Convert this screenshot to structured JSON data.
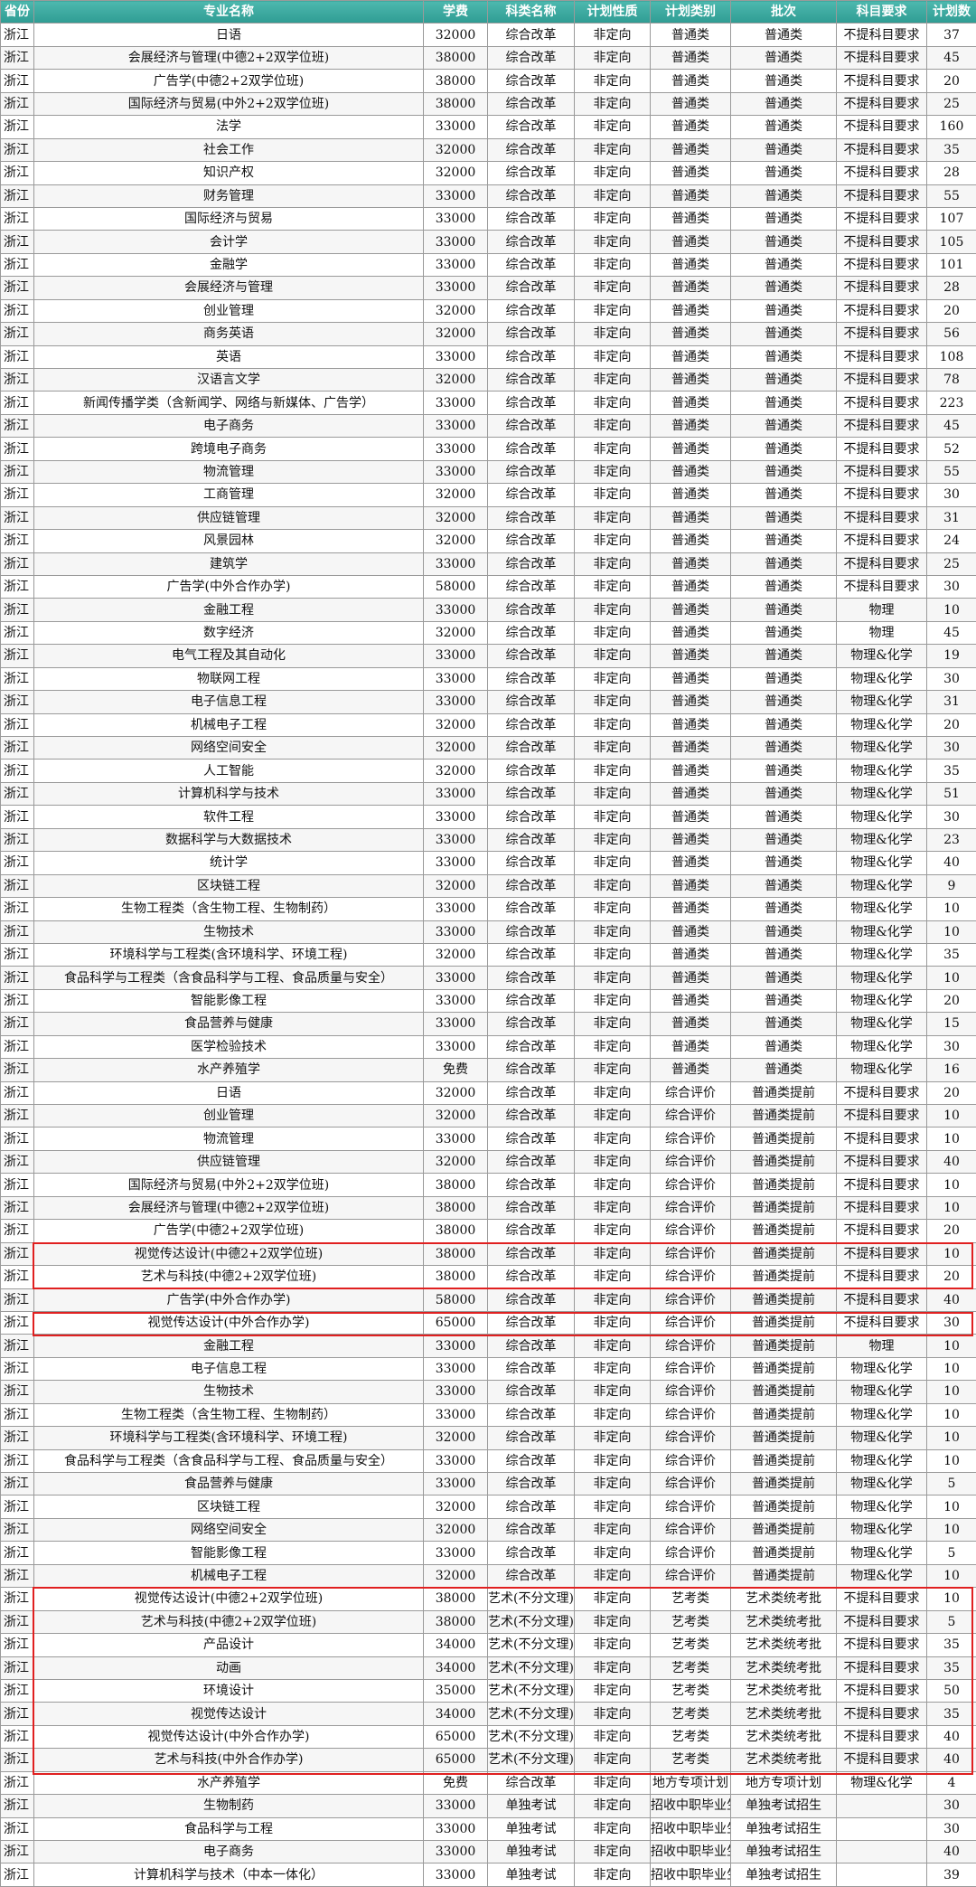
{
  "table": {
    "header": [
      "省份",
      "专业名称",
      "学费",
      "科类名称",
      "计划性质",
      "计划类别",
      "批次",
      "科目要求",
      "计划数"
    ],
    "rows": [
      [
        "浙江",
        "日语",
        32000,
        "综合改革",
        "非定向",
        "普通类",
        "普通类",
        "不提科目要求",
        37
      ],
      [
        "浙江",
        "会展经济与管理(中德2+2双学位班)",
        38000,
        "综合改革",
        "非定向",
        "普通类",
        "普通类",
        "不提科目要求",
        45
      ],
      [
        "浙江",
        "广告学(中德2+2双学位班)",
        38000,
        "综合改革",
        "非定向",
        "普通类",
        "普通类",
        "不提科目要求",
        20
      ],
      [
        "浙江",
        "国际经济与贸易(中外2+2双学位班)",
        38000,
        "综合改革",
        "非定向",
        "普通类",
        "普通类",
        "不提科目要求",
        25
      ],
      [
        "浙江",
        "法学",
        33000,
        "综合改革",
        "非定向",
        "普通类",
        "普通类",
        "不提科目要求",
        160
      ],
      [
        "浙江",
        "社会工作",
        32000,
        "综合改革",
        "非定向",
        "普通类",
        "普通类",
        "不提科目要求",
        35
      ],
      [
        "浙江",
        "知识产权",
        32000,
        "综合改革",
        "非定向",
        "普通类",
        "普通类",
        "不提科目要求",
        28
      ],
      [
        "浙江",
        "财务管理",
        33000,
        "综合改革",
        "非定向",
        "普通类",
        "普通类",
        "不提科目要求",
        55
      ],
      [
        "浙江",
        "国际经济与贸易",
        33000,
        "综合改革",
        "非定向",
        "普通类",
        "普通类",
        "不提科目要求",
        107
      ],
      [
        "浙江",
        "会计学",
        33000,
        "综合改革",
        "非定向",
        "普通类",
        "普通类",
        "不提科目要求",
        105
      ],
      [
        "浙江",
        "金融学",
        33000,
        "综合改革",
        "非定向",
        "普通类",
        "普通类",
        "不提科目要求",
        101
      ],
      [
        "浙江",
        "会展经济与管理",
        33000,
        "综合改革",
        "非定向",
        "普通类",
        "普通类",
        "不提科目要求",
        28
      ],
      [
        "浙江",
        "创业管理",
        32000,
        "综合改革",
        "非定向",
        "普通类",
        "普通类",
        "不提科目要求",
        20
      ],
      [
        "浙江",
        "商务英语",
        32000,
        "综合改革",
        "非定向",
        "普通类",
        "普通类",
        "不提科目要求",
        56
      ],
      [
        "浙江",
        "英语",
        33000,
        "综合改革",
        "非定向",
        "普通类",
        "普通类",
        "不提科目要求",
        108
      ],
      [
        "浙江",
        "汉语言文学",
        32000,
        "综合改革",
        "非定向",
        "普通类",
        "普通类",
        "不提科目要求",
        78
      ],
      [
        "浙江",
        "新闻传播学类（含新闻学、网络与新媒体、广告学）",
        33000,
        "综合改革",
        "非定向",
        "普通类",
        "普通类",
        "不提科目要求",
        223
      ],
      [
        "浙江",
        "电子商务",
        33000,
        "综合改革",
        "非定向",
        "普通类",
        "普通类",
        "不提科目要求",
        45
      ],
      [
        "浙江",
        "跨境电子商务",
        33000,
        "综合改革",
        "非定向",
        "普通类",
        "普通类",
        "不提科目要求",
        52
      ],
      [
        "浙江",
        "物流管理",
        33000,
        "综合改革",
        "非定向",
        "普通类",
        "普通类",
        "不提科目要求",
        55
      ],
      [
        "浙江",
        "工商管理",
        32000,
        "综合改革",
        "非定向",
        "普通类",
        "普通类",
        "不提科目要求",
        30
      ],
      [
        "浙江",
        "供应链管理",
        32000,
        "综合改革",
        "非定向",
        "普通类",
        "普通类",
        "不提科目要求",
        31
      ],
      [
        "浙江",
        "风景园林",
        32000,
        "综合改革",
        "非定向",
        "普通类",
        "普通类",
        "不提科目要求",
        24
      ],
      [
        "浙江",
        "建筑学",
        33000,
        "综合改革",
        "非定向",
        "普通类",
        "普通类",
        "不提科目要求",
        25
      ],
      [
        "浙江",
        "广告学(中外合作办学)",
        58000,
        "综合改革",
        "非定向",
        "普通类",
        "普通类",
        "不提科目要求",
        30
      ],
      [
        "浙江",
        "金融工程",
        33000,
        "综合改革",
        "非定向",
        "普通类",
        "普通类",
        "物理",
        10
      ],
      [
        "浙江",
        "数字经济",
        32000,
        "综合改革",
        "非定向",
        "普通类",
        "普通类",
        "物理",
        45
      ],
      [
        "浙江",
        "电气工程及其自动化",
        33000,
        "综合改革",
        "非定向",
        "普通类",
        "普通类",
        "物理&化学",
        19
      ],
      [
        "浙江",
        "物联网工程",
        33000,
        "综合改革",
        "非定向",
        "普通类",
        "普通类",
        "物理&化学",
        30
      ],
      [
        "浙江",
        "电子信息工程",
        33000,
        "综合改革",
        "非定向",
        "普通类",
        "普通类",
        "物理&化学",
        31
      ],
      [
        "浙江",
        "机械电子工程",
        32000,
        "综合改革",
        "非定向",
        "普通类",
        "普通类",
        "物理&化学",
        20
      ],
      [
        "浙江",
        "网络空间安全",
        32000,
        "综合改革",
        "非定向",
        "普通类",
        "普通类",
        "物理&化学",
        30
      ],
      [
        "浙江",
        "人工智能",
        32000,
        "综合改革",
        "非定向",
        "普通类",
        "普通类",
        "物理&化学",
        35
      ],
      [
        "浙江",
        "计算机科学与技术",
        33000,
        "综合改革",
        "非定向",
        "普通类",
        "普通类",
        "物理&化学",
        51
      ],
      [
        "浙江",
        "软件工程",
        33000,
        "综合改革",
        "非定向",
        "普通类",
        "普通类",
        "物理&化学",
        30
      ],
      [
        "浙江",
        "数据科学与大数据技术",
        33000,
        "综合改革",
        "非定向",
        "普通类",
        "普通类",
        "物理&化学",
        23
      ],
      [
        "浙江",
        "统计学",
        33000,
        "综合改革",
        "非定向",
        "普通类",
        "普通类",
        "物理&化学",
        40
      ],
      [
        "浙江",
        "区块链工程",
        32000,
        "综合改革",
        "非定向",
        "普通类",
        "普通类",
        "物理&化学",
        9
      ],
      [
        "浙江",
        "生物工程类（含生物工程、生物制药）",
        33000,
        "综合改革",
        "非定向",
        "普通类",
        "普通类",
        "物理&化学",
        10
      ],
      [
        "浙江",
        "生物技术",
        33000,
        "综合改革",
        "非定向",
        "普通类",
        "普通类",
        "物理&化学",
        10
      ],
      [
        "浙江",
        "环境科学与工程类(含环境科学、环境工程)",
        32000,
        "综合改革",
        "非定向",
        "普通类",
        "普通类",
        "物理&化学",
        35
      ],
      [
        "浙江",
        "食品科学与工程类（含食品科学与工程、食品质量与安全）",
        33000,
        "综合改革",
        "非定向",
        "普通类",
        "普通类",
        "物理&化学",
        10
      ],
      [
        "浙江",
        "智能影像工程",
        33000,
        "综合改革",
        "非定向",
        "普通类",
        "普通类",
        "物理&化学",
        20
      ],
      [
        "浙江",
        "食品营养与健康",
        33000,
        "综合改革",
        "非定向",
        "普通类",
        "普通类",
        "物理&化学",
        15
      ],
      [
        "浙江",
        "医学检验技术",
        33000,
        "综合改革",
        "非定向",
        "普通类",
        "普通类",
        "物理&化学",
        30
      ],
      [
        "浙江",
        "水产养殖学",
        "免费",
        "综合改革",
        "非定向",
        "普通类",
        "普通类",
        "物理&化学",
        16
      ],
      [
        "浙江",
        "日语",
        32000,
        "综合改革",
        "非定向",
        "综合评价",
        "普通类提前",
        "不提科目要求",
        20
      ],
      [
        "浙江",
        "创业管理",
        32000,
        "综合改革",
        "非定向",
        "综合评价",
        "普通类提前",
        "不提科目要求",
        10
      ],
      [
        "浙江",
        "物流管理",
        33000,
        "综合改革",
        "非定向",
        "综合评价",
        "普通类提前",
        "不提科目要求",
        10
      ],
      [
        "浙江",
        "供应链管理",
        32000,
        "综合改革",
        "非定向",
        "综合评价",
        "普通类提前",
        "不提科目要求",
        40
      ],
      [
        "浙江",
        "国际经济与贸易(中外2+2双学位班)",
        38000,
        "综合改革",
        "非定向",
        "综合评价",
        "普通类提前",
        "不提科目要求",
        10
      ],
      [
        "浙江",
        "会展经济与管理(中德2+2双学位班)",
        38000,
        "综合改革",
        "非定向",
        "综合评价",
        "普通类提前",
        "不提科目要求",
        10
      ],
      [
        "浙江",
        "广告学(中德2+2双学位班)",
        38000,
        "综合改革",
        "非定向",
        "综合评价",
        "普通类提前",
        "不提科目要求",
        20
      ],
      [
        "浙江",
        "视觉传达设计(中德2+2双学位班)",
        38000,
        "综合改革",
        "非定向",
        "综合评价",
        "普通类提前",
        "不提科目要求",
        10
      ],
      [
        "浙江",
        "艺术与科技(中德2+2双学位班)",
        38000,
        "综合改革",
        "非定向",
        "综合评价",
        "普通类提前",
        "不提科目要求",
        20
      ],
      [
        "浙江",
        "广告学(中外合作办学)",
        58000,
        "综合改革",
        "非定向",
        "综合评价",
        "普通类提前",
        "不提科目要求",
        40
      ],
      [
        "浙江",
        "视觉传达设计(中外合作办学)",
        65000,
        "综合改革",
        "非定向",
        "综合评价",
        "普通类提前",
        "不提科目要求",
        30
      ],
      [
        "浙江",
        "金融工程",
        33000,
        "综合改革",
        "非定向",
        "综合评价",
        "普通类提前",
        "物理",
        10
      ],
      [
        "浙江",
        "电子信息工程",
        33000,
        "综合改革",
        "非定向",
        "综合评价",
        "普通类提前",
        "物理&化学",
        10
      ],
      [
        "浙江",
        "生物技术",
        33000,
        "综合改革",
        "非定向",
        "综合评价",
        "普通类提前",
        "物理&化学",
        10
      ],
      [
        "浙江",
        "生物工程类（含生物工程、生物制药）",
        33000,
        "综合改革",
        "非定向",
        "综合评价",
        "普通类提前",
        "物理&化学",
        10
      ],
      [
        "浙江",
        "环境科学与工程类(含环境科学、环境工程)",
        32000,
        "综合改革",
        "非定向",
        "综合评价",
        "普通类提前",
        "物理&化学",
        10
      ],
      [
        "浙江",
        "食品科学与工程类（含食品科学与工程、食品质量与安全）",
        33000,
        "综合改革",
        "非定向",
        "综合评价",
        "普通类提前",
        "物理&化学",
        10
      ],
      [
        "浙江",
        "食品营养与健康",
        33000,
        "综合改革",
        "非定向",
        "综合评价",
        "普通类提前",
        "物理&化学",
        5
      ],
      [
        "浙江",
        "区块链工程",
        32000,
        "综合改革",
        "非定向",
        "综合评价",
        "普通类提前",
        "物理&化学",
        10
      ],
      [
        "浙江",
        "网络空间安全",
        32000,
        "综合改革",
        "非定向",
        "综合评价",
        "普通类提前",
        "物理&化学",
        10
      ],
      [
        "浙江",
        "智能影像工程",
        33000,
        "综合改革",
        "非定向",
        "综合评价",
        "普通类提前",
        "物理&化学",
        5
      ],
      [
        "浙江",
        "机械电子工程",
        32000,
        "综合改革",
        "非定向",
        "综合评价",
        "普通类提前",
        "物理&化学",
        10
      ],
      [
        "浙江",
        "视觉传达设计(中德2+2双学位班)",
        38000,
        "艺术(不分文理)",
        "非定向",
        "艺考类",
        "艺术类统考批",
        "不提科目要求",
        10
      ],
      [
        "浙江",
        "艺术与科技(中德2+2双学位班)",
        38000,
        "艺术(不分文理)",
        "非定向",
        "艺考类",
        "艺术类统考批",
        "不提科目要求",
        5
      ],
      [
        "浙江",
        "产品设计",
        34000,
        "艺术(不分文理)",
        "非定向",
        "艺考类",
        "艺术类统考批",
        "不提科目要求",
        35
      ],
      [
        "浙江",
        "动画",
        34000,
        "艺术(不分文理)",
        "非定向",
        "艺考类",
        "艺术类统考批",
        "不提科目要求",
        35
      ],
      [
        "浙江",
        "环境设计",
        35000,
        "艺术(不分文理)",
        "非定向",
        "艺考类",
        "艺术类统考批",
        "不提科目要求",
        50
      ],
      [
        "浙江",
        "视觉传达设计",
        34000,
        "艺术(不分文理)",
        "非定向",
        "艺考类",
        "艺术类统考批",
        "不提科目要求",
        35
      ],
      [
        "浙江",
        "视觉传达设计(中外合作办学)",
        65000,
        "艺术(不分文理)",
        "非定向",
        "艺考类",
        "艺术类统考批",
        "不提科目要求",
        40
      ],
      [
        "浙江",
        "艺术与科技(中外合作办学)",
        65000,
        "艺术(不分文理)",
        "非定向",
        "艺考类",
        "艺术类统考批",
        "不提科目要求",
        40
      ],
      [
        "浙江",
        "水产养殖学",
        "免费",
        "综合改革",
        "非定向",
        "地方专项计划",
        "地方专项计划",
        "物理&化学",
        4
      ],
      [
        "浙江",
        "生物制药",
        33000,
        "单独考试",
        "非定向",
        "招收中职毕业生",
        "单独考试招生",
        null,
        30
      ],
      [
        "浙江",
        "食品科学与工程",
        33000,
        "单独考试",
        "非定向",
        "招收中职毕业生",
        "单独考试招生",
        null,
        30
      ],
      [
        "浙江",
        "电子商务",
        33000,
        "单独考试",
        "非定向",
        "招收中职毕业生",
        "单独考试招生",
        null,
        40
      ],
      [
        "浙江",
        "计算机科学与技术（中本一体化）",
        33000,
        "单独考试",
        "非定向",
        "招收中职毕业生",
        "单独考试招生",
        null,
        39
      ]
    ]
  }
}
